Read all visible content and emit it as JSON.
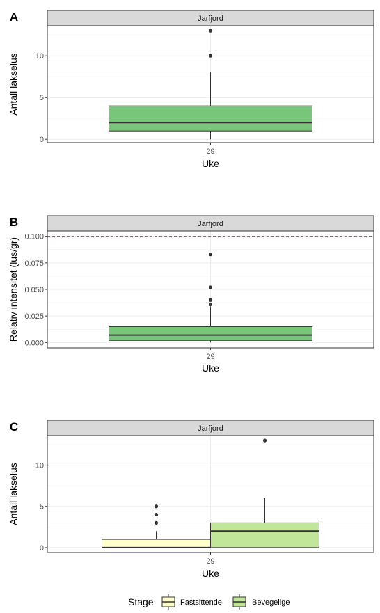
{
  "chart_data": [
    {
      "type": "box",
      "tag": "A",
      "strip": "Jarfjord",
      "xlabel": "Uke",
      "ylabel": "Antall lakselus",
      "categories": [
        "29"
      ],
      "ylim": [
        -0.4,
        13.6
      ],
      "yticks": [
        0,
        5,
        10
      ],
      "grid": true,
      "series": [
        {
          "category": "29",
          "q1": 1,
          "median": 2,
          "q3": 4,
          "whisker_low": 0,
          "whisker_high": 8,
          "outliers": [
            10,
            13
          ],
          "color": "#78c679"
        }
      ]
    },
    {
      "type": "box",
      "tag": "B",
      "strip": "Jarfjord",
      "xlabel": "Uke",
      "ylabel": "Relativ intensitet (lus/gr)",
      "categories": [
        "29"
      ],
      "ylim": [
        -0.005,
        0.105
      ],
      "yticks": [
        0.0,
        0.025,
        0.05,
        0.075,
        0.1
      ],
      "ytick_labels": [
        "0.000",
        "0.025",
        "0.050",
        "0.075",
        "0.100"
      ],
      "grid": true,
      "reference_line": {
        "y": 0.1,
        "color": "#c0392b",
        "style": "dashed"
      },
      "series": [
        {
          "category": "29",
          "q1": 0.002,
          "median": 0.007,
          "q3": 0.015,
          "whisker_low": 0.0,
          "whisker_high": 0.034,
          "outliers": [
            0.036,
            0.04,
            0.052,
            0.083
          ],
          "color": "#78c679"
        }
      ]
    },
    {
      "type": "box",
      "tag": "C",
      "strip": "Jarfjord",
      "xlabel": "Uke",
      "ylabel": "Antall lakselus",
      "categories": [
        "29"
      ],
      "ylim": [
        -0.6,
        13.6
      ],
      "yticks": [
        0,
        5,
        10
      ],
      "grid": true,
      "legend": {
        "title": "Stage",
        "position": "bottom"
      },
      "series": [
        {
          "name": "Fastsittende",
          "category": "29",
          "q1": 0,
          "median": 0,
          "q3": 1,
          "whisker_low": 0,
          "whisker_high": 2,
          "outliers": [
            3,
            4,
            5
          ],
          "color": "#ffffcc"
        },
        {
          "name": "Bevegelige",
          "category": "29",
          "q1": 0,
          "median": 2,
          "q3": 3,
          "whisker_low": 0,
          "whisker_high": 6,
          "outliers": [
            13
          ],
          "color": "#c2e699"
        }
      ]
    }
  ]
}
